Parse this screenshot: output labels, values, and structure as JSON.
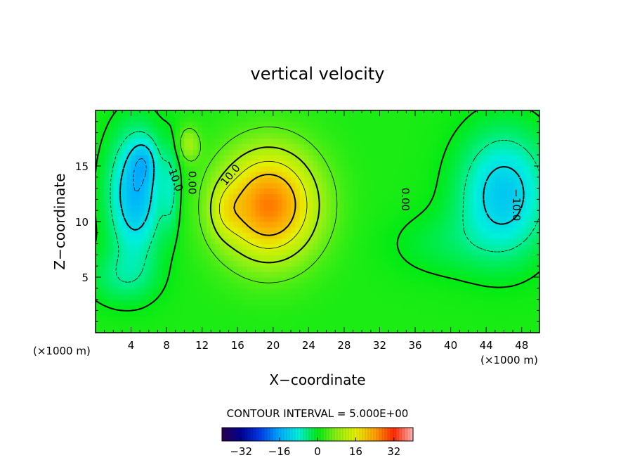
{
  "chart_data": {
    "type": "heatmap",
    "title": "vertical velocity",
    "xlabel": "X−coordinate",
    "ylabel": "Z−coordinate",
    "x_units_left": "(×1000 m)",
    "x_units_right": "(×1000 m)",
    "xlim": [
      0,
      50
    ],
    "ylim": [
      0,
      20
    ],
    "xticks": [
      4,
      8,
      12,
      16,
      20,
      24,
      28,
      32,
      36,
      40,
      44,
      48
    ],
    "xtick_labels": [
      "4",
      "8",
      "12",
      "16",
      "20",
      "24",
      "28",
      "32",
      "36",
      "40",
      "44",
      "48"
    ],
    "yticks": [
      5,
      10,
      15
    ],
    "ytick_labels": [
      "5",
      "10",
      "15"
    ],
    "contour_interval_text": "CONTOUR INTERVAL = 5.000E+00",
    "contour_labels": [
      "0.00",
      "0.00",
      "10.0",
      "−10.0",
      "−10.0"
    ],
    "colorbar": {
      "range": [
        -40,
        40
      ],
      "ticks": [
        -32,
        -16,
        0,
        16,
        32
      ],
      "tick_labels": [
        "−32",
        "−16",
        "0",
        "16",
        "32"
      ]
    },
    "features": [
      {
        "kind": "max",
        "x": 19,
        "y": 12,
        "value": 25
      },
      {
        "kind": "max",
        "x": 14.5,
        "y": 11,
        "value": 13
      },
      {
        "kind": "max",
        "x": 10.5,
        "y": 17,
        "value": 8
      },
      {
        "kind": "min",
        "x": 4.5,
        "y": 12,
        "value": -17
      },
      {
        "kind": "min",
        "x": 5.5,
        "y": 15.5,
        "value": -12
      },
      {
        "kind": "min",
        "x": 46,
        "y": 12.5,
        "value": -14
      },
      {
        "kind": "min",
        "x": 3,
        "y": 17,
        "value": 6
      }
    ]
  }
}
